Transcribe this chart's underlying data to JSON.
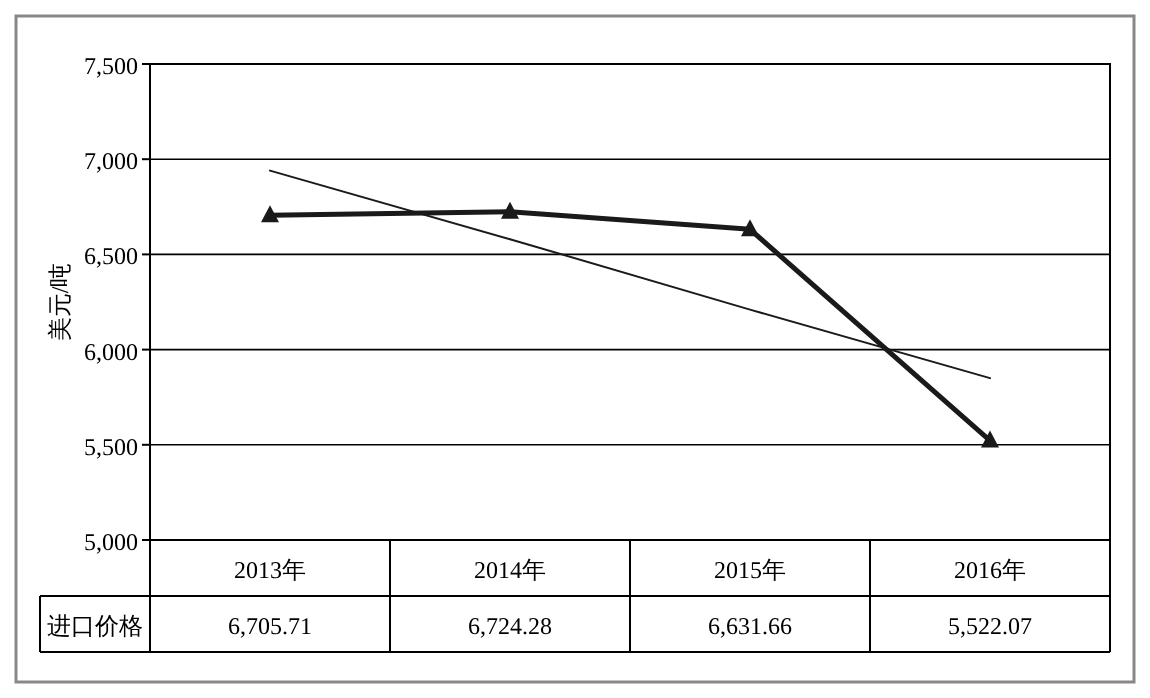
{
  "chart_data": {
    "type": "line",
    "ylabel": "美元/吨",
    "categories": [
      "2013年",
      "2014年",
      "2015年",
      "2016年"
    ],
    "series": [
      {
        "name": "进口价格",
        "color": "#1a1a1a",
        "values": [
          6705.71,
          6724.28,
          6631.66,
          5522.07
        ],
        "value_labels": [
          "6,705.71",
          "6,724.28",
          "6,631.66",
          "5,522.07"
        ],
        "marker": "triangle"
      },
      {
        "color": "#1a1a1a",
        "values": [
          6940,
          6580,
          6210,
          5850
        ],
        "marker": "none"
      }
    ],
    "ylim": [
      5000,
      7500
    ],
    "yticks": [
      {
        "value": 5000,
        "label": "5,000"
      },
      {
        "value": 5500,
        "label": "5,500"
      },
      {
        "value": 6000,
        "label": "6,000"
      },
      {
        "value": 6500,
        "label": "6,500"
      },
      {
        "value": 7000,
        "label": "7,000"
      },
      {
        "value": 7500,
        "label": "7,500"
      }
    ],
    "grid": "y",
    "legend": false,
    "line_style": "solid"
  }
}
